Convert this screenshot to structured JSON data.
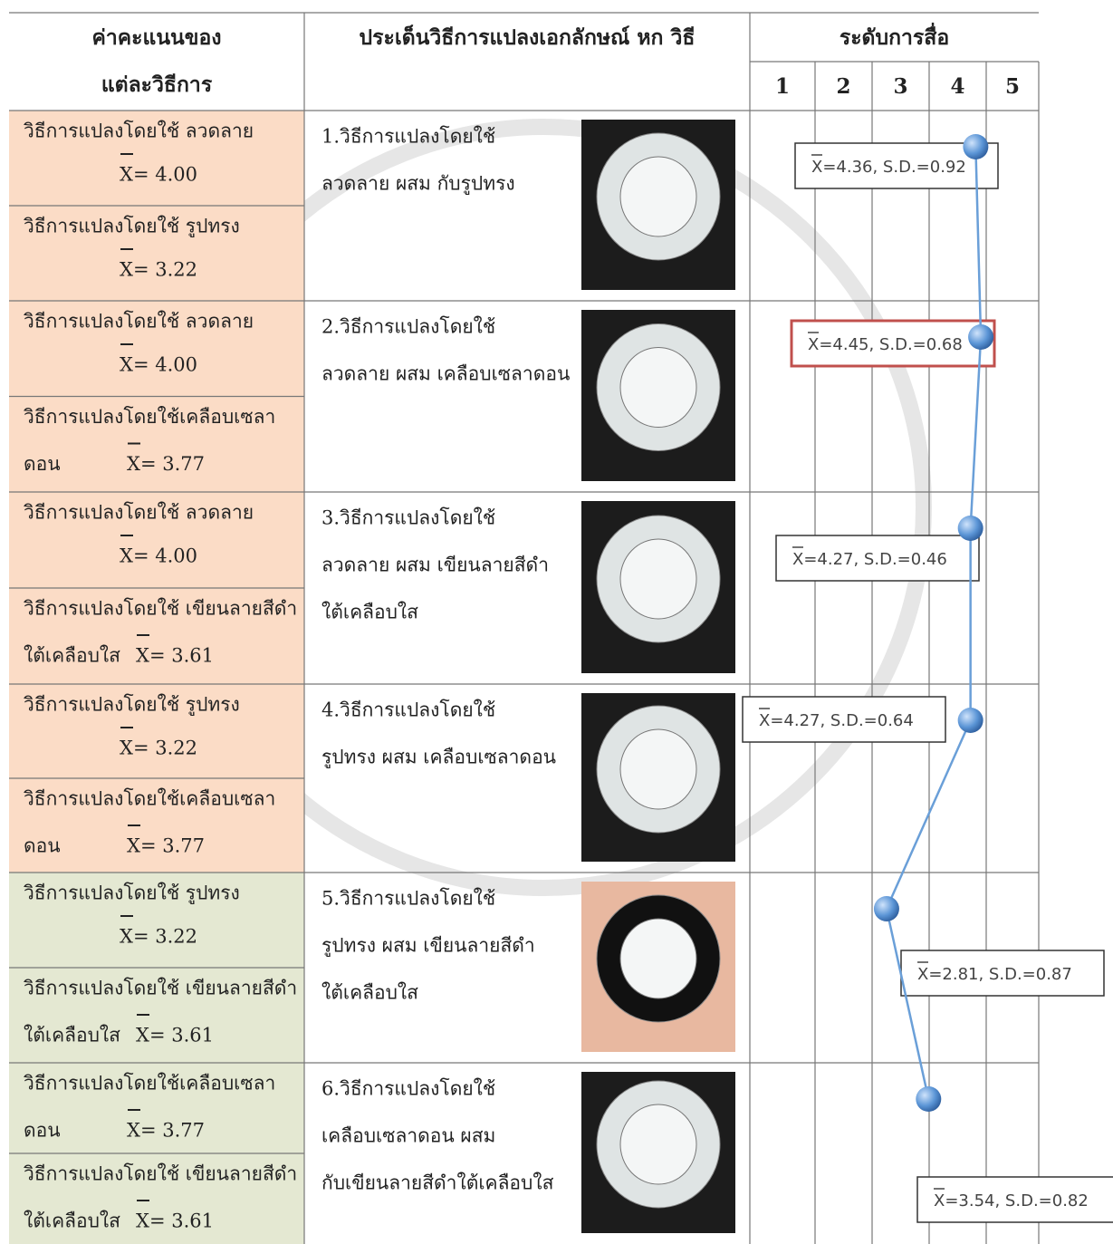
{
  "table": {
    "headers": {
      "scores": [
        "ค่าคะแนนของ",
        "แต่ละวิธีการ"
      ],
      "issues": "ประเด็นวิธีการแปลงเอกลักษณ์ หก วิธี",
      "levels_title": "ระดับการสื่อ"
    },
    "levels": [
      1,
      2,
      3,
      4,
      5
    ],
    "rows": [
      {
        "methods": [
          {
            "label": "วิธีการแปลงโดยใช้ ลวดลาย",
            "mean": "X= 4.00"
          },
          {
            "label": "วิธีการแปลงโดยใช้ รูปทรง",
            "mean": "X= 3.22"
          }
        ],
        "issue": [
          "1.วิธีการแปลงโดยใช้",
          "ลวดลาย ผสม กับรูปทรง"
        ],
        "stat": "X=4.36, S.D.=0.92",
        "mean": 4.36
      },
      {
        "methods": [
          {
            "label": "วิธีการแปลงโดยใช้ ลวดลาย",
            "mean": "X= 4.00"
          },
          {
            "label": "วิธีการแปลงโดยใช้เคลือบเซลา",
            "prefix": "ดอน",
            "mean": "X= 3.77"
          }
        ],
        "issue": [
          "2.วิธีการแปลงโดยใช้",
          "ลวดลาย ผสม เคลือบเซลาดอน"
        ],
        "stat": "X=4.45, S.D.=0.68",
        "mean": 4.45
      },
      {
        "methods": [
          {
            "label": "วิธีการแปลงโดยใช้ ลวดลาย",
            "mean": "X= 4.00"
          },
          {
            "label": "วิธีการแปลงโดยใช้ เขียนลายสีดำ",
            "prefix": "ใต้เคลือบใส",
            "mean": "X= 3.61"
          }
        ],
        "issue": [
          "3.วิธีการแปลงโดยใช้",
          "ลวดลาย ผสม เขียนลายสีดำ",
          "ใต้เคลือบใส"
        ],
        "stat": "X=4.27, S.D.=0.46",
        "mean": 4.27
      },
      {
        "methods": [
          {
            "label": "วิธีการแปลงโดยใช้ รูปทรง",
            "mean": "X= 3.22"
          },
          {
            "label": "วิธีการแปลงโดยใช้เคลือบเซลา",
            "prefix": "ดอน",
            "mean": "X= 3.77"
          }
        ],
        "issue": [
          "4.วิธีการแปลงโดยใช้",
          "รูปทรง ผสม เคลือบเซลาดอน"
        ],
        "stat": "X=4.27, S.D.=0.64",
        "mean": 4.27
      },
      {
        "methods": [
          {
            "label": "วิธีการแปลงโดยใช้ รูปทรง",
            "mean": "X= 3.22"
          },
          {
            "label": "วิธีการแปลงโดยใช้ เขียนลายสีดำ",
            "prefix": "ใต้เคลือบใส",
            "mean": "X= 3.61"
          }
        ],
        "issue": [
          "5.วิธีการแปลงโดยใช้",
          "รูปทรง ผสม เขียนลายสีดำ",
          "ใต้เคลือบใส"
        ],
        "stat": "X=2.81, S.D.=0.87",
        "mean": 2.81
      },
      {
        "methods": [
          {
            "label": "วิธีการแปลงโดยใช้เคลือบเซลา",
            "prefix": "ดอน",
            "mean": "X= 3.77"
          },
          {
            "label": "วิธีการแปลงโดยใช้ เขียนลายสีดำ",
            "prefix": "ใต้เคลือบใส",
            "mean": "X= 3.61"
          }
        ],
        "issue": [
          "6.วิธีการแปลงโดยใช้",
          "เคลือบเซลาดอน ผสม",
          "กับเขียนลายสีดำใต้เคลือบใส"
        ],
        "stat": "X=3.54, S.D.=0.82",
        "mean": 3.54
      }
    ]
  }
}
